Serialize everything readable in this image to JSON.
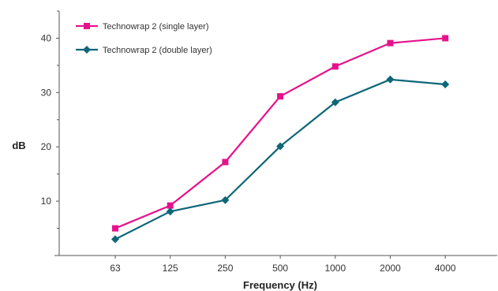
{
  "chart_data": {
    "type": "line",
    "title": "",
    "xlabel": "Frequency (Hz)",
    "ylabel": "dB",
    "categories": [
      "63",
      "125",
      "250",
      "500",
      "1000",
      "2000",
      "4000"
    ],
    "ylim": [
      0,
      45
    ],
    "yticks": [
      10,
      20,
      30,
      40
    ],
    "yticks_minor": [
      5,
      15,
      25,
      35,
      45
    ],
    "grid": false,
    "legend_position": "top-left",
    "series": [
      {
        "name": "Technowrap 2 (single layer)",
        "color": "#e6128c",
        "marker": "square",
        "values": [
          5,
          9.2,
          17.2,
          29.3,
          34.8,
          39.1,
          40.0
        ]
      },
      {
        "name": "Technowrap 2 (double layer)",
        "color": "#0e6677",
        "marker": "diamond",
        "values": [
          3,
          8.1,
          10.2,
          20.1,
          28.2,
          32.4,
          31.5
        ]
      }
    ]
  }
}
